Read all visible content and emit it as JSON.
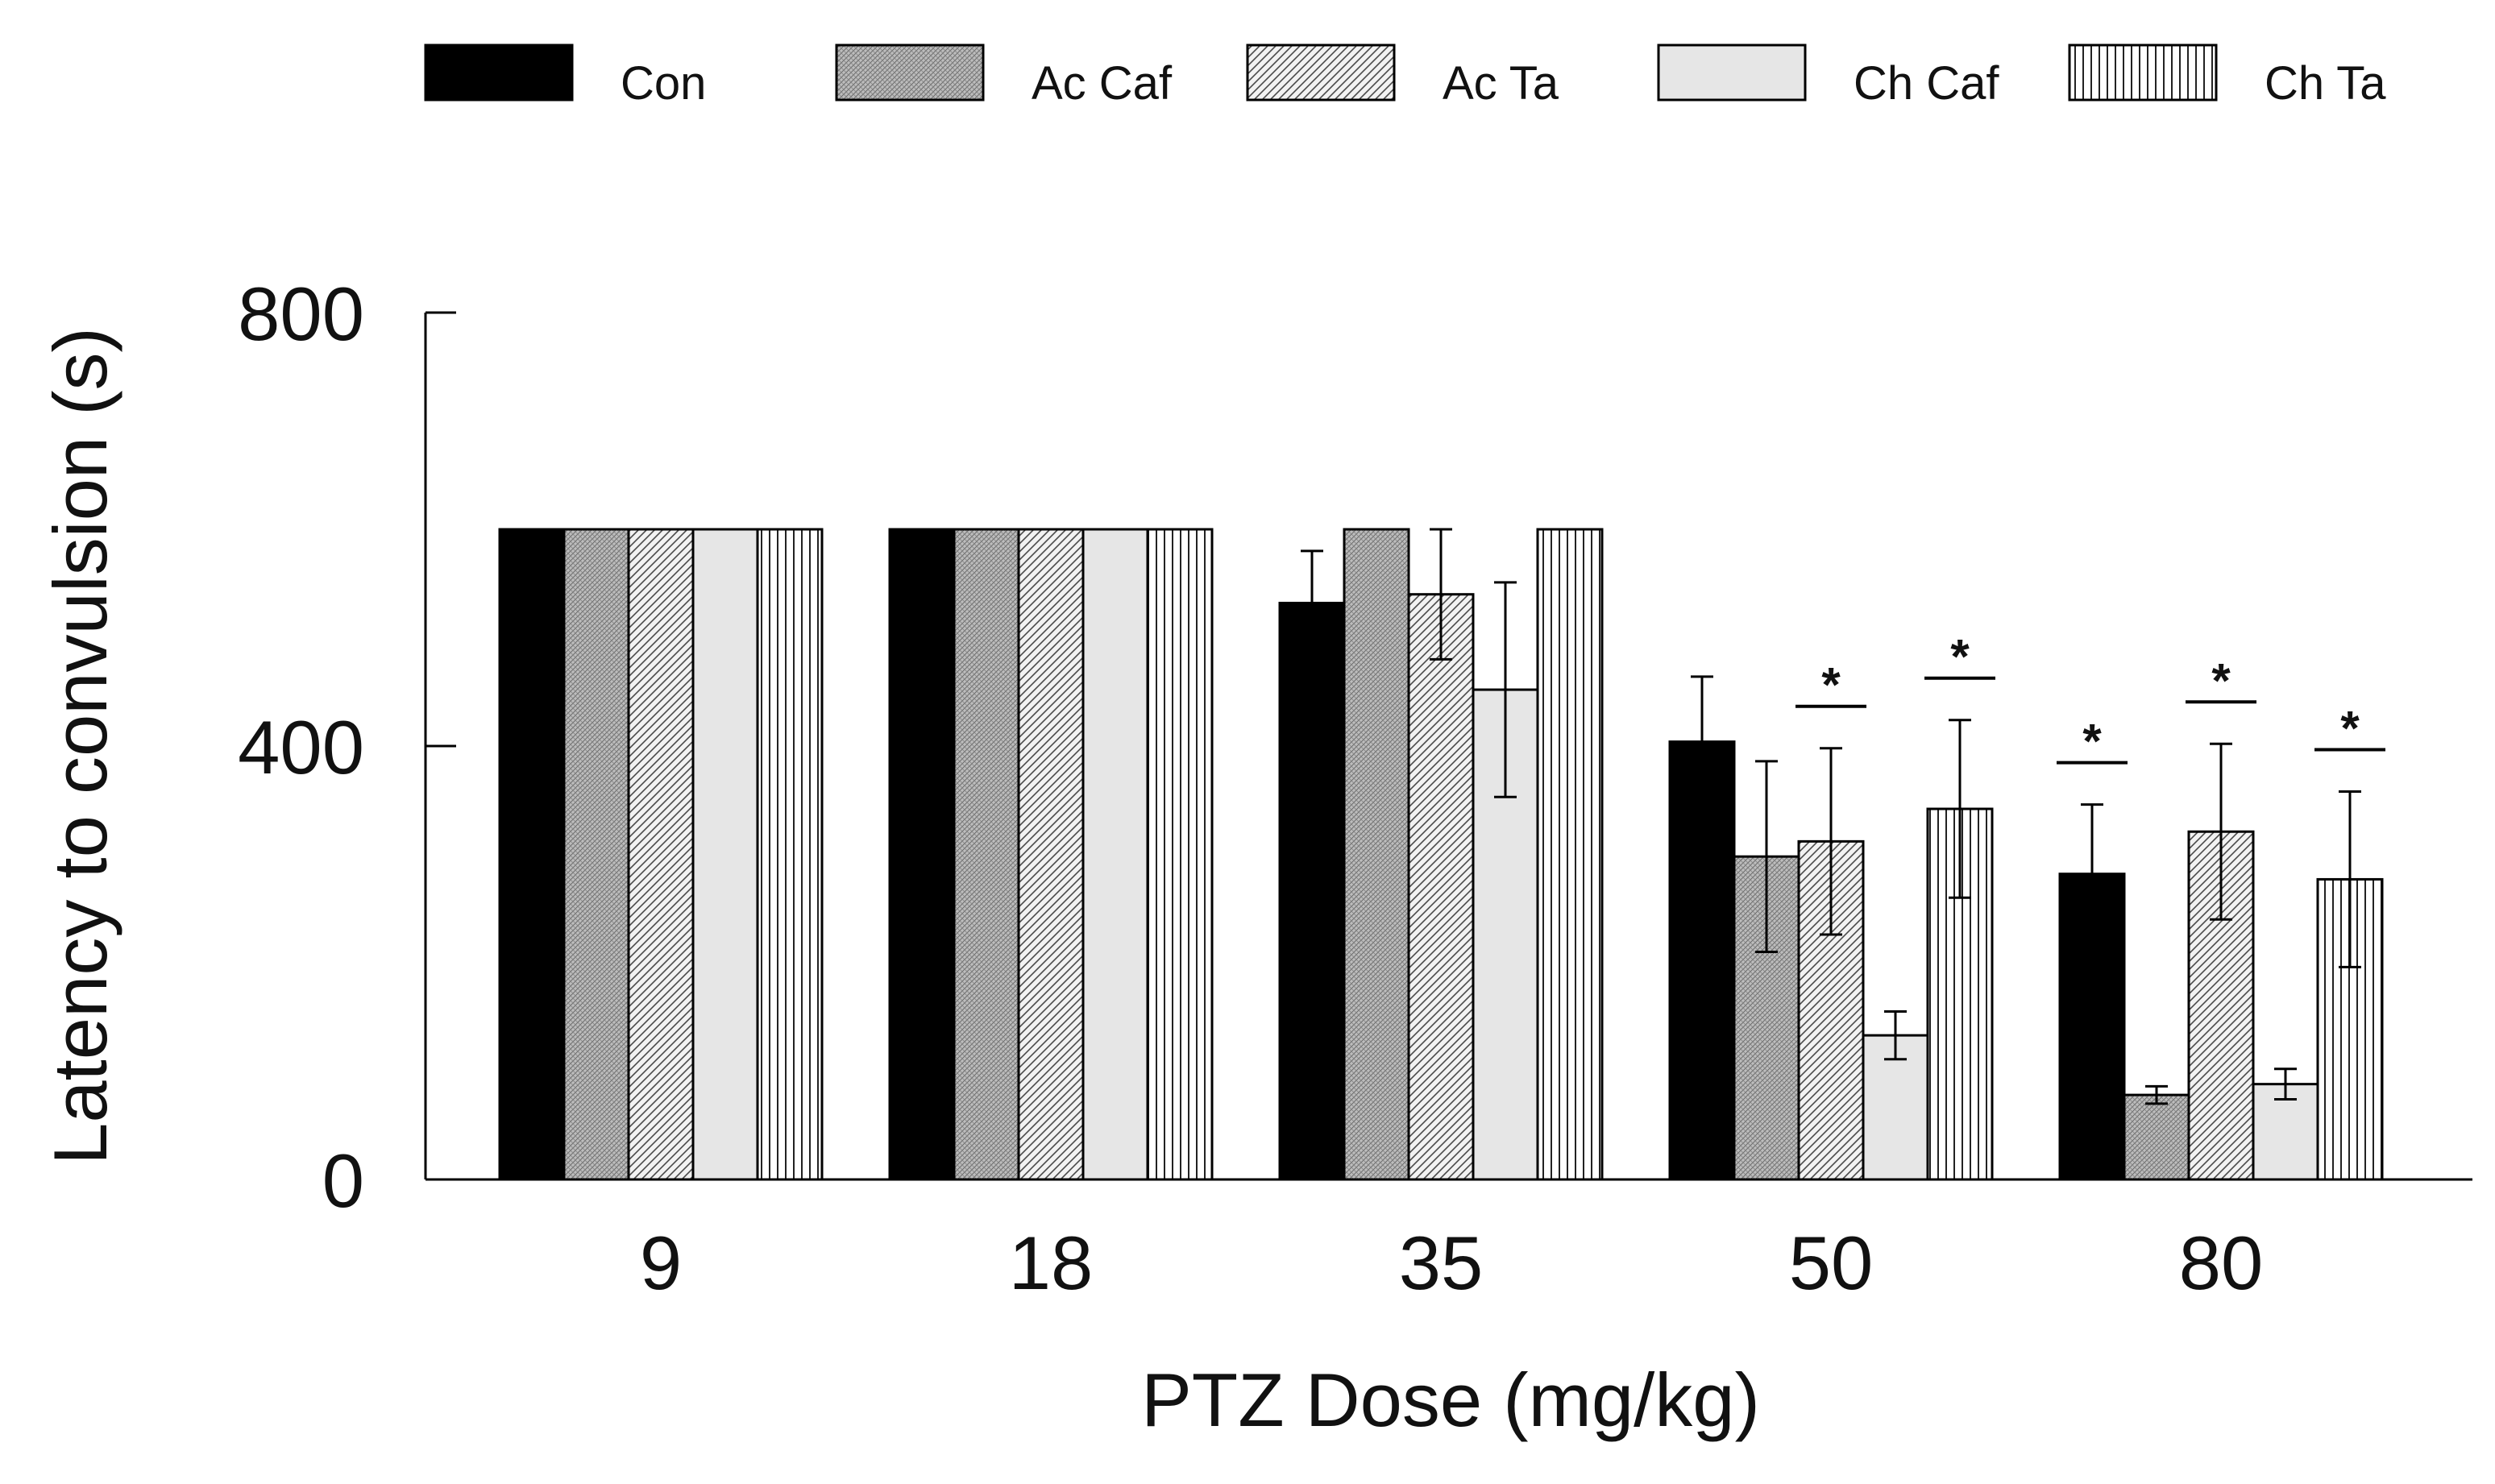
{
  "chart_data": {
    "type": "bar",
    "title": "",
    "xlabel": "PTZ Dose (mg/kg)",
    "ylabel": "Latency to convulsion (s)",
    "ylim": [
      0,
      800
    ],
    "yticks": [
      0,
      400,
      800
    ],
    "grid": false,
    "legend_position": "top",
    "categories": [
      "9",
      "18",
      "35",
      "50",
      "80"
    ],
    "series": [
      {
        "name": "Con",
        "fill": "solid-black",
        "values": [
          600,
          600,
          532,
          404,
          282
        ],
        "errors": [
          0,
          0,
          48,
          60,
          64
        ]
      },
      {
        "name": "Ac Caf",
        "fill": "crosshatch-gray",
        "values": [
          600,
          600,
          600,
          298,
          78
        ],
        "errors": [
          0,
          0,
          0,
          88,
          8
        ]
      },
      {
        "name": "Ac Ta",
        "fill": "diagonal-hatch",
        "values": [
          600,
          600,
          540,
          312,
          321
        ],
        "errors": [
          0,
          0,
          60,
          86,
          81
        ]
      },
      {
        "name": "Ch Caf",
        "fill": "light-gray",
        "values": [
          600,
          600,
          452,
          133,
          88
        ],
        "errors": [
          0,
          0,
          99,
          22,
          14
        ]
      },
      {
        "name": "Ch Ta",
        "fill": "vertical-stripes",
        "values": [
          600,
          600,
          600,
          342,
          277
        ],
        "errors": [
          0,
          0,
          0,
          82,
          81
        ]
      }
    ],
    "significance": [
      {
        "category": "50",
        "series": "Ac Ta",
        "label": "*"
      },
      {
        "category": "50",
        "series": "Ch Ta",
        "label": "*"
      },
      {
        "category": "80",
        "series": "Con",
        "label": "*"
      },
      {
        "category": "80",
        "series": "Ac Ta",
        "label": "*"
      },
      {
        "category": "80",
        "series": "Ch Ta",
        "label": "*"
      }
    ]
  },
  "colors": {
    "bar_outline": "#000000",
    "con_fill": "#000000",
    "ac_caf_fill": "#b8b8b8",
    "ac_ta_fill": "#f0f0f0",
    "ch_caf_fill": "#e6e6e6",
    "ch_ta_fill": "#ffffff"
  }
}
